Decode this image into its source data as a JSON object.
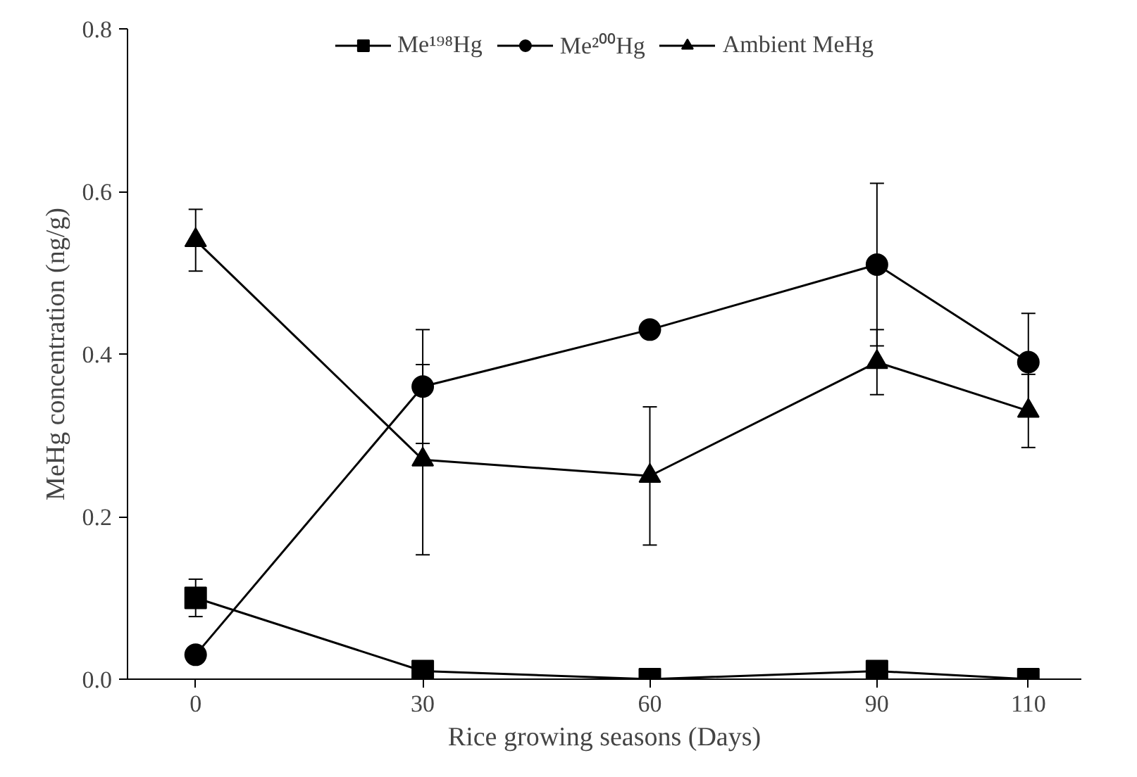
{
  "chart_data": {
    "type": "line",
    "xlabel": "Rice growing seasons (Days)",
    "ylabel": "MeHg concentration (ng/g)",
    "x": [
      0,
      30,
      60,
      90,
      110
    ],
    "series": [
      {
        "name": "Me¹⁹⁸Hg",
        "color": "#000000",
        "marker": "square",
        "values": [
          0.1,
          0.01,
          0.0,
          0.01,
          0.0
        ],
        "errors": [
          0.023,
          null,
          null,
          null,
          null
        ]
      },
      {
        "name": "Me²⁰⁰Hg",
        "color": "#000000",
        "marker": "circle",
        "values": [
          0.03,
          0.36,
          0.43,
          0.51,
          0.39
        ],
        "errors": [
          null,
          0.07,
          0.01,
          0.1,
          0.06
        ]
      },
      {
        "name": "Ambient MeHg",
        "color": "#000000",
        "marker": "triangle",
        "values": [
          0.54,
          0.27,
          0.25,
          0.39,
          0.33
        ],
        "errors": [
          0.038,
          0.117,
          0.085,
          0.04,
          0.045
        ]
      }
    ],
    "xlim": [
      -9,
      117
    ],
    "ylim": [
      0,
      0.8
    ],
    "xticks": [
      0,
      30,
      60,
      90,
      110
    ],
    "yticks": [
      {
        "value": 0,
        "label": "0.0"
      },
      {
        "value": 0.2,
        "label": "0.2"
      },
      {
        "value": 0.4,
        "label": "0.4"
      },
      {
        "value": 0.6,
        "label": "0.6"
      },
      {
        "value": 0.8,
        "label": "0.8"
      }
    ],
    "grid": false,
    "legend": "top",
    "line_style": "solid"
  }
}
